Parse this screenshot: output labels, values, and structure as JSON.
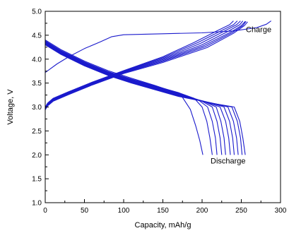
{
  "chart_data": {
    "type": "line",
    "title": "",
    "xlabel": "Capacity, mAh/g",
    "ylabel": "Voltage, V",
    "xlim": [
      0,
      300
    ],
    "ylim": [
      1.0,
      5.0
    ],
    "x_ticks": [
      0,
      50,
      100,
      150,
      200,
      250,
      300
    ],
    "y_ticks": [
      1.0,
      1.5,
      2.0,
      2.5,
      3.0,
      3.5,
      4.0,
      4.5,
      5.0
    ],
    "y_tick_labels": [
      "1.0",
      "1.5",
      "2.0",
      "2.5",
      "3.0",
      "3.5",
      "4.0",
      "4.5",
      "5.0"
    ],
    "grid": false,
    "legend": "none",
    "line_color": "#1a1acc",
    "annotations": [
      {
        "text": "Charge",
        "x": 280,
        "y": 4.62
      },
      {
        "text": "Discharge",
        "x": 210,
        "y": 1.88
      }
    ],
    "series": [
      {
        "points": [
          [
            0,
            3.72
          ],
          [
            5,
            3.78
          ],
          [
            15,
            3.9
          ],
          [
            30,
            4.05
          ],
          [
            50,
            4.22
          ],
          [
            70,
            4.36
          ],
          [
            85,
            4.47
          ],
          [
            100,
            4.51
          ],
          [
            150,
            4.53
          ],
          [
            200,
            4.55
          ],
          [
            240,
            4.59
          ],
          [
            270,
            4.66
          ],
          [
            282,
            4.73
          ],
          [
            288,
            4.8
          ]
        ]
      },
      {
        "points": [
          [
            0,
            3.0
          ],
          [
            3,
            3.08
          ],
          [
            10,
            3.18
          ],
          [
            30,
            3.32
          ],
          [
            60,
            3.52
          ],
          [
            100,
            3.76
          ],
          [
            150,
            4.05
          ],
          [
            190,
            4.35
          ],
          [
            220,
            4.6
          ],
          [
            235,
            4.72
          ],
          [
            240,
            4.8
          ]
        ]
      },
      {
        "points": [
          [
            0,
            2.99
          ],
          [
            3,
            3.07
          ],
          [
            10,
            3.17
          ],
          [
            30,
            3.31
          ],
          [
            60,
            3.51
          ],
          [
            100,
            3.75
          ],
          [
            150,
            4.03
          ],
          [
            195,
            4.35
          ],
          [
            225,
            4.6
          ],
          [
            240,
            4.72
          ],
          [
            245,
            4.8
          ]
        ]
      },
      {
        "points": [
          [
            0,
            2.98
          ],
          [
            3,
            3.06
          ],
          [
            10,
            3.16
          ],
          [
            30,
            3.3
          ],
          [
            60,
            3.5
          ],
          [
            100,
            3.74
          ],
          [
            150,
            4.01
          ],
          [
            198,
            4.33
          ],
          [
            230,
            4.6
          ],
          [
            244,
            4.72
          ],
          [
            249,
            4.8
          ]
        ]
      },
      {
        "points": [
          [
            0,
            2.97
          ],
          [
            3,
            3.05
          ],
          [
            10,
            3.15
          ],
          [
            30,
            3.29
          ],
          [
            60,
            3.49
          ],
          [
            100,
            3.73
          ],
          [
            150,
            3.99
          ],
          [
            200,
            4.3
          ],
          [
            233,
            4.58
          ],
          [
            248,
            4.72
          ],
          [
            252,
            4.8
          ]
        ]
      },
      {
        "points": [
          [
            0,
            2.96
          ],
          [
            3,
            3.04
          ],
          [
            10,
            3.14
          ],
          [
            30,
            3.28
          ],
          [
            60,
            3.48
          ],
          [
            100,
            3.72
          ],
          [
            150,
            3.97
          ],
          [
            202,
            4.28
          ],
          [
            236,
            4.56
          ],
          [
            250,
            4.7
          ],
          [
            255,
            4.79
          ]
        ]
      },
      {
        "points": [
          [
            0,
            2.95
          ],
          [
            3,
            3.03
          ],
          [
            10,
            3.13
          ],
          [
            30,
            3.27
          ],
          [
            60,
            3.47
          ],
          [
            100,
            3.71
          ],
          [
            150,
            3.95
          ],
          [
            204,
            4.26
          ],
          [
            238,
            4.55
          ],
          [
            252,
            4.7
          ],
          [
            256,
            4.79
          ]
        ]
      },
      {
        "points": [
          [
            0,
            2.94
          ],
          [
            3,
            3.02
          ],
          [
            10,
            3.12
          ],
          [
            30,
            3.26
          ],
          [
            60,
            3.46
          ],
          [
            100,
            3.7
          ],
          [
            150,
            3.93
          ],
          [
            206,
            4.24
          ],
          [
            240,
            4.54
          ],
          [
            254,
            4.7
          ],
          [
            258,
            4.78
          ]
        ]
      },
      {
        "points": [
          [
            0,
            4.4
          ],
          [
            20,
            4.2
          ],
          [
            50,
            3.96
          ],
          [
            80,
            3.76
          ],
          [
            110,
            3.6
          ],
          [
            140,
            3.45
          ],
          [
            160,
            3.34
          ],
          [
            175,
            3.2
          ],
          [
            185,
            2.95
          ],
          [
            192,
            2.6
          ],
          [
            197,
            2.3
          ],
          [
            201,
            2.0
          ]
        ]
      },
      {
        "points": [
          [
            0,
            4.38
          ],
          [
            20,
            4.18
          ],
          [
            50,
            3.94
          ],
          [
            80,
            3.74
          ],
          [
            110,
            3.58
          ],
          [
            140,
            3.44
          ],
          [
            170,
            3.3
          ],
          [
            190,
            3.18
          ],
          [
            200,
            3.0
          ],
          [
            206,
            2.7
          ],
          [
            210,
            2.35
          ],
          [
            213,
            2.0
          ]
        ]
      },
      {
        "points": [
          [
            0,
            4.37
          ],
          [
            20,
            4.17
          ],
          [
            50,
            3.93
          ],
          [
            80,
            3.73
          ],
          [
            110,
            3.57
          ],
          [
            140,
            3.43
          ],
          [
            170,
            3.29
          ],
          [
            195,
            3.15
          ],
          [
            207,
            3.0
          ],
          [
            213,
            2.7
          ],
          [
            217,
            2.35
          ],
          [
            219,
            2.0
          ]
        ]
      },
      {
        "points": [
          [
            0,
            4.36
          ],
          [
            20,
            4.16
          ],
          [
            50,
            3.92
          ],
          [
            80,
            3.72
          ],
          [
            110,
            3.56
          ],
          [
            140,
            3.42
          ],
          [
            170,
            3.28
          ],
          [
            200,
            3.12
          ],
          [
            213,
            3.0
          ],
          [
            219,
            2.7
          ],
          [
            223,
            2.35
          ],
          [
            225,
            2.0
          ]
        ]
      },
      {
        "points": [
          [
            0,
            4.35
          ],
          [
            20,
            4.15
          ],
          [
            50,
            3.91
          ],
          [
            80,
            3.71
          ],
          [
            110,
            3.55
          ],
          [
            140,
            3.41
          ],
          [
            170,
            3.27
          ],
          [
            203,
            3.11
          ],
          [
            218,
            3.0
          ],
          [
            224,
            2.7
          ],
          [
            228,
            2.35
          ],
          [
            230,
            2.0
          ]
        ]
      },
      {
        "points": [
          [
            0,
            4.34
          ],
          [
            20,
            4.14
          ],
          [
            50,
            3.9
          ],
          [
            80,
            3.7
          ],
          [
            110,
            3.54
          ],
          [
            140,
            3.4
          ],
          [
            170,
            3.26
          ],
          [
            206,
            3.1
          ],
          [
            223,
            3.0
          ],
          [
            230,
            2.7
          ],
          [
            234,
            2.35
          ],
          [
            236,
            2.0
          ]
        ]
      },
      {
        "points": [
          [
            0,
            4.33
          ],
          [
            20,
            4.13
          ],
          [
            50,
            3.89
          ],
          [
            80,
            3.69
          ],
          [
            110,
            3.53
          ],
          [
            140,
            3.39
          ],
          [
            170,
            3.25
          ],
          [
            210,
            3.09
          ],
          [
            228,
            3.0
          ],
          [
            235,
            2.7
          ],
          [
            239,
            2.35
          ],
          [
            241,
            2.0
          ]
        ]
      },
      {
        "points": [
          [
            0,
            4.32
          ],
          [
            20,
            4.12
          ],
          [
            50,
            3.88
          ],
          [
            80,
            3.68
          ],
          [
            110,
            3.52
          ],
          [
            140,
            3.38
          ],
          [
            170,
            3.24
          ],
          [
            213,
            3.08
          ],
          [
            233,
            3.0
          ],
          [
            240,
            2.7
          ],
          [
            244,
            2.35
          ],
          [
            246,
            2.0
          ]
        ]
      },
      {
        "points": [
          [
            0,
            4.31
          ],
          [
            20,
            4.11
          ],
          [
            50,
            3.87
          ],
          [
            80,
            3.67
          ],
          [
            110,
            3.51
          ],
          [
            140,
            3.37
          ],
          [
            170,
            3.23
          ],
          [
            216,
            3.07
          ],
          [
            238,
            3.0
          ],
          [
            245,
            2.7
          ],
          [
            249,
            2.35
          ],
          [
            251,
            2.0
          ]
        ]
      },
      {
        "points": [
          [
            0,
            4.3
          ],
          [
            20,
            4.1
          ],
          [
            50,
            3.86
          ],
          [
            80,
            3.66
          ],
          [
            110,
            3.5
          ],
          [
            140,
            3.36
          ],
          [
            170,
            3.22
          ],
          [
            219,
            3.06
          ],
          [
            241,
            3.0
          ],
          [
            248,
            2.7
          ],
          [
            252,
            2.35
          ],
          [
            255,
            2.0
          ]
        ]
      }
    ]
  }
}
